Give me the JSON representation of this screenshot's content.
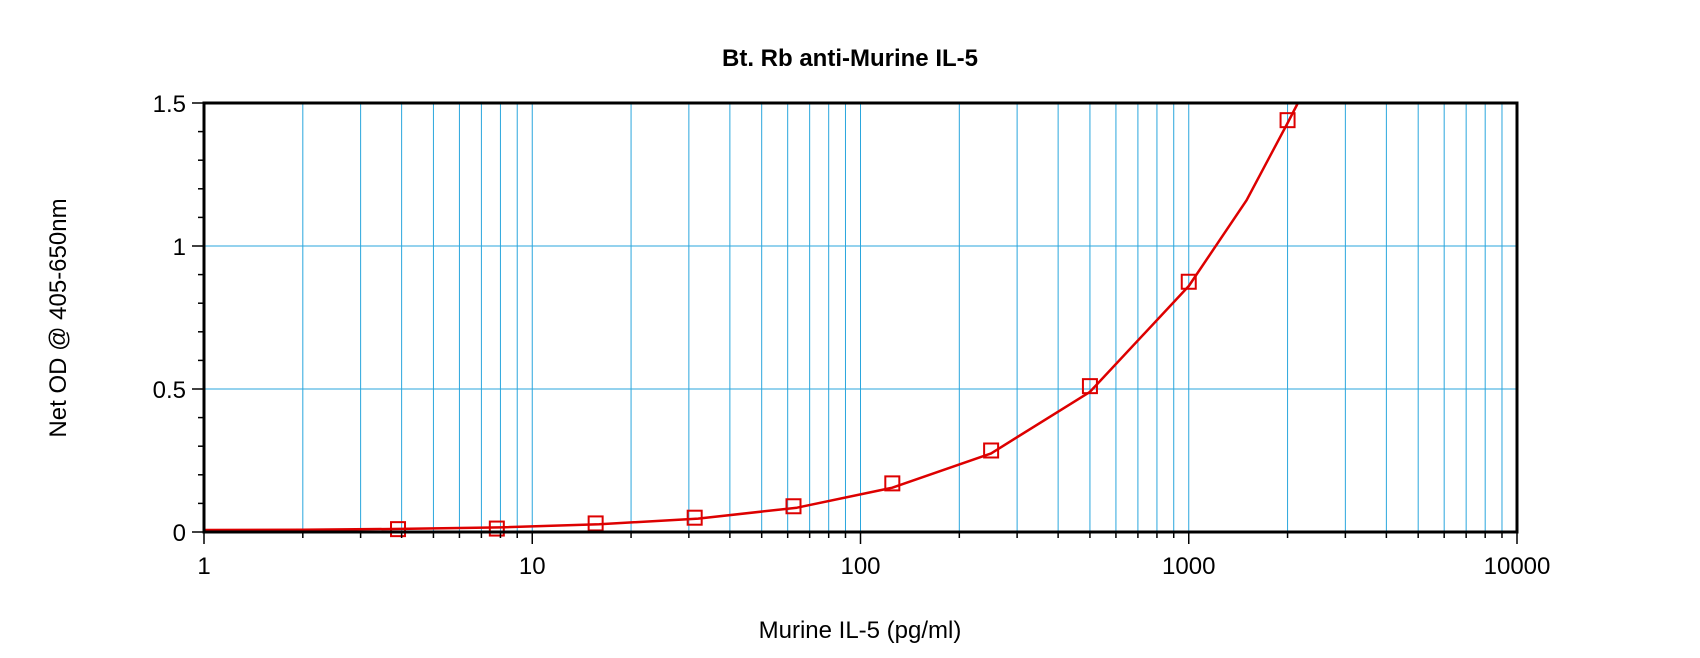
{
  "chart_data": {
    "type": "scatter",
    "title": "Bt. Rb anti-Murine IL-5",
    "xlabel": "Murine IL-5 (pg/ml)",
    "ylabel": "Net OD @ 405-650nm",
    "x_scale": "log",
    "xlim": [
      1,
      10000
    ],
    "ylim": [
      0,
      1.5
    ],
    "x_ticks": [
      1,
      10,
      100,
      1000,
      10000
    ],
    "x_tick_labels": [
      "1",
      "10",
      "100",
      "1000",
      "10000"
    ],
    "y_ticks": [
      0,
      0.5,
      1,
      1.5
    ],
    "y_tick_labels": [
      "0",
      "0.5",
      "1",
      "1.5"
    ],
    "grid": true,
    "series": [
      {
        "type": "scatter",
        "marker": "open-square",
        "x": [
          3.9,
          7.8,
          15.6,
          31.25,
          62.5,
          125,
          250,
          500,
          1000,
          2000
        ],
        "y": [
          0.01,
          0.012,
          0.03,
          0.05,
          0.09,
          0.17,
          0.285,
          0.51,
          0.875,
          1.44
        ]
      },
      {
        "type": "line",
        "x": [
          1,
          2,
          4,
          8,
          16,
          32,
          64,
          125,
          250,
          500,
          1000,
          1500,
          2000,
          2150
        ],
        "y": [
          0.007,
          0.008,
          0.011,
          0.016,
          0.027,
          0.047,
          0.085,
          0.155,
          0.275,
          0.49,
          0.86,
          1.16,
          1.43,
          1.5
        ]
      }
    ],
    "colors": {
      "data": "#dd0000",
      "grid": "#2aa6dd",
      "axis": "#000000"
    }
  }
}
